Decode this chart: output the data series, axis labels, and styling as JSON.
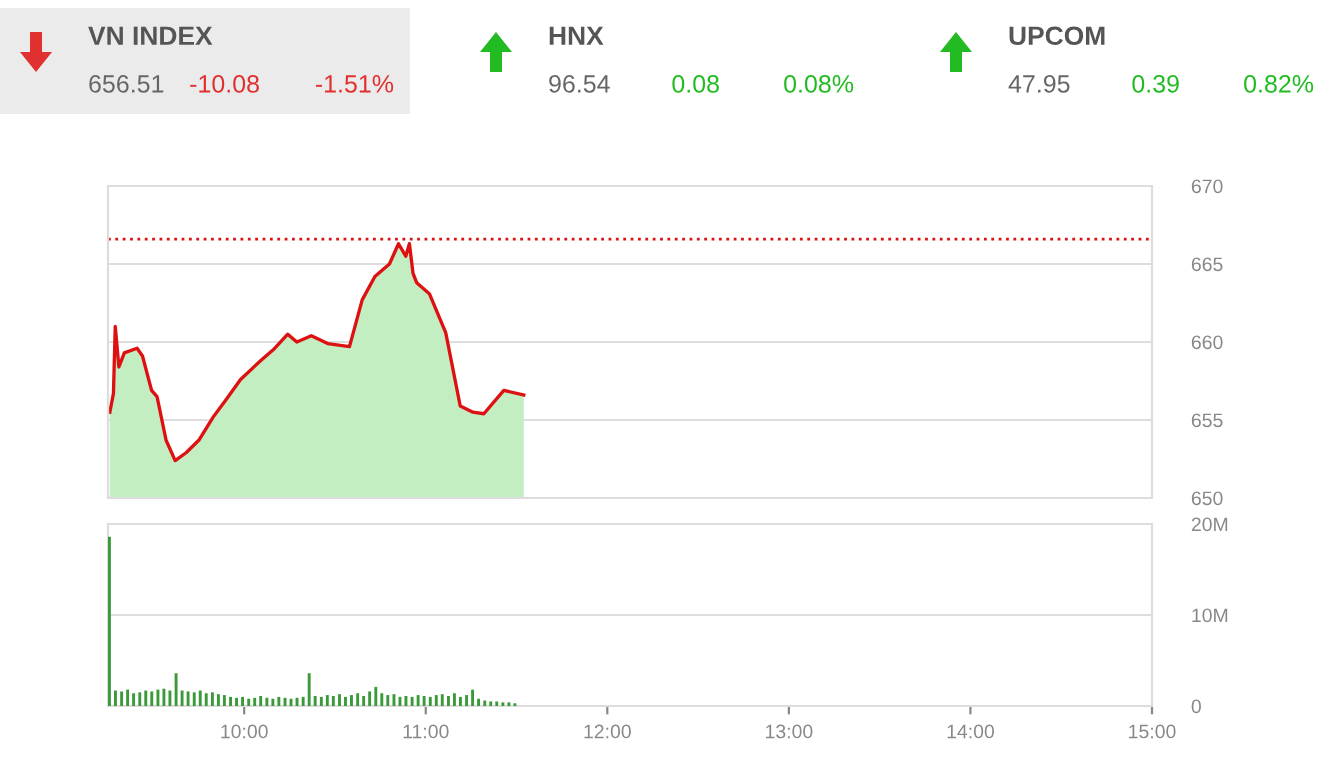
{
  "chart_data": [
    {
      "type": "other",
      "annotations": [
        "VN INDEX",
        "656.51",
        "-10.08",
        "-1.51%",
        "HNX",
        "96.54",
        "0.08",
        "0.08%",
        "UPCOM",
        "47.95",
        "0.39",
        "0.82%"
      ],
      "colors": [
        "#555555",
        "#666666",
        "#e03030",
        "#e03030",
        "#555555",
        "#666666",
        "#22bb22",
        "#22bb22",
        "#555555",
        "#666666",
        "#22bb22",
        "#22bb22"
      ]
    },
    {
      "type": "area",
      "x": [
        9.26,
        9.28,
        9.29,
        9.31,
        9.34,
        9.41,
        9.44,
        9.49,
        9.52,
        9.57,
        9.62,
        9.68,
        9.75,
        9.83,
        9.9,
        9.98,
        10.09,
        10.16,
        10.24,
        10.29,
        10.37,
        10.46,
        10.58,
        10.65,
        10.72,
        10.8,
        10.85,
        10.89,
        10.91,
        10.93,
        10.95,
        11.02,
        11.11,
        11.19,
        11.26,
        11.32,
        11.43,
        11.54
      ],
      "series": [
        {
          "color": "#c2eec2",
          "values": [
            655.5,
            656.7,
            661.0,
            658.4,
            659.3,
            659.6,
            659.1,
            656.9,
            656.5,
            653.7,
            652.4,
            652.9,
            653.7,
            655.2,
            656.3,
            657.6,
            658.8,
            659.5,
            660.5,
            660.0,
            660.4,
            659.9,
            659.7,
            662.7,
            664.2,
            665.0,
            666.3,
            665.5,
            666.3,
            664.4,
            663.8,
            663.1,
            660.6,
            655.9,
            655.5,
            655.4,
            656.9,
            656.6
          ]
        },
        {
          "type": "line",
          "color": "#dd1111",
          "values": [
            655.5,
            656.7,
            661.0,
            658.4,
            659.3,
            659.6,
            659.1,
            656.9,
            656.5,
            653.7,
            652.4,
            652.9,
            653.7,
            655.2,
            656.3,
            657.6,
            658.8,
            659.5,
            660.5,
            660.0,
            660.4,
            659.9,
            659.7,
            662.7,
            664.2,
            665.0,
            666.3,
            665.5,
            666.3,
            664.4,
            663.8,
            663.1,
            660.6,
            655.9,
            655.5,
            655.4,
            656.9,
            656.6
          ]
        }
      ],
      "xlim": [
        9.25,
        15
      ],
      "ylim": [
        650,
        670
      ],
      "yticks": [
        650,
        655,
        660,
        665,
        670
      ],
      "tick_labels": "y",
      "grid": "y",
      "ref_lines": [
        {
          "axis": "y",
          "value": 666.59,
          "color": "#dd1111",
          "line_style": "dotted"
        }
      ]
    },
    {
      "type": "bar",
      "x": [
        9.25,
        9.283,
        9.317,
        9.35,
        9.383,
        9.417,
        9.45,
        9.483,
        9.517,
        9.55,
        9.583,
        9.617,
        9.65,
        9.683,
        9.717,
        9.75,
        9.783,
        9.817,
        9.85,
        9.883,
        9.917,
        9.95,
        9.983,
        10.017,
        10.05,
        10.083,
        10.117,
        10.15,
        10.183,
        10.217,
        10.25,
        10.283,
        10.317,
        10.35,
        10.383,
        10.417,
        10.45,
        10.483,
        10.517,
        10.55,
        10.583,
        10.617,
        10.65,
        10.683,
        10.717,
        10.75,
        10.783,
        10.817,
        10.85,
        10.883,
        10.917,
        10.95,
        10.983,
        11.017,
        11.05,
        11.083,
        11.117,
        11.15,
        11.183,
        11.217,
        11.25,
        11.283,
        11.317,
        11.35,
        11.383,
        11.417,
        11.45,
        11.483
      ],
      "series": [
        {
          "color": "#3a9a3a",
          "values": [
            18.6,
            1.7,
            1.6,
            1.8,
            1.4,
            1.5,
            1.7,
            1.6,
            1.8,
            1.9,
            1.7,
            3.6,
            1.7,
            1.6,
            1.5,
            1.7,
            1.4,
            1.5,
            1.3,
            1.2,
            1.0,
            0.9,
            1.0,
            0.8,
            0.9,
            1.1,
            0.9,
            0.8,
            1.0,
            0.9,
            0.8,
            0.9,
            1.0,
            3.6,
            1.1,
            1.0,
            1.2,
            1.1,
            1.3,
            1.0,
            1.2,
            1.4,
            1.1,
            1.6,
            2.1,
            1.4,
            1.2,
            1.3,
            1.0,
            1.1,
            1.0,
            1.2,
            1.1,
            1.0,
            1.2,
            1.3,
            1.1,
            1.4,
            1.0,
            1.2,
            1.8,
            0.8,
            0.6,
            0.5,
            0.5,
            0.4,
            0.4,
            0.3
          ]
        }
      ],
      "xlim": [
        9.25,
        15
      ],
      "xticks": [
        {
          "value": 10,
          "label": "10:00"
        },
        {
          "value": 11,
          "label": "11:00"
        },
        {
          "value": 12,
          "label": "12:00"
        },
        {
          "value": 13,
          "label": "13:00"
        },
        {
          "value": 14,
          "label": "14:00"
        },
        {
          "value": 15,
          "label": "15:00"
        }
      ],
      "ylim": [
        0,
        20
      ],
      "yticks": [
        {
          "value": 0,
          "label": "0"
        },
        {
          "value": 10,
          "label": "10M"
        },
        {
          "value": 20,
          "label": "20M"
        }
      ],
      "grid": "y"
    }
  ]
}
